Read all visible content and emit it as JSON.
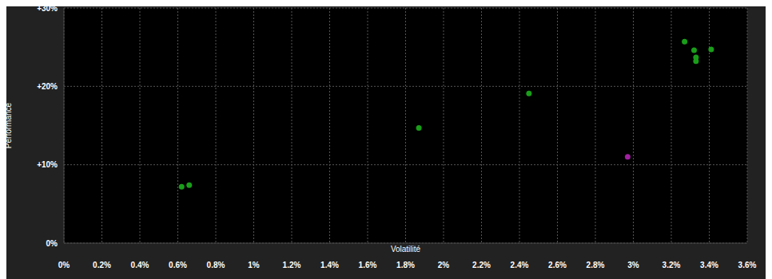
{
  "chart_data": {
    "type": "scatter",
    "xlabel": "Volatilité",
    "ylabel": "Performance",
    "x": [
      0.62,
      0.66,
      1.87,
      2.45,
      3.27,
      3.32,
      3.33,
      3.33,
      3.41,
      2.97
    ],
    "values": [
      7.2,
      7.4,
      14.7,
      19.1,
      25.7,
      24.6,
      23.7,
      23.2,
      24.7,
      11.0
    ],
    "colors": [
      "#1a9e1a",
      "#1a9e1a",
      "#1a9e1a",
      "#1a9e1a",
      "#1a9e1a",
      "#1a9e1a",
      "#1a9e1a",
      "#1a9e1a",
      "#1a9e1a",
      "#a020a0"
    ],
    "marker": "circle",
    "xlim": [
      0,
      3.6
    ],
    "xticks": [
      {
        "value": 0,
        "label": "0%"
      },
      {
        "value": 0.2,
        "label": "0.2%"
      },
      {
        "value": 0.4,
        "label": "0.4%"
      },
      {
        "value": 0.6,
        "label": "0.6%"
      },
      {
        "value": 0.8,
        "label": "0.8%"
      },
      {
        "value": 1,
        "label": "1%"
      },
      {
        "value": 1.2,
        "label": "1.2%"
      },
      {
        "value": 1.4,
        "label": "1.4%"
      },
      {
        "value": 1.6,
        "label": "1.6%"
      },
      {
        "value": 1.8,
        "label": "1.8%"
      },
      {
        "value": 2,
        "label": "2%"
      },
      {
        "value": 2.2,
        "label": "2.2%"
      },
      {
        "value": 2.4,
        "label": "2.4%"
      },
      {
        "value": 2.6,
        "label": "2.6%"
      },
      {
        "value": 2.8,
        "label": "2.8%"
      },
      {
        "value": 3,
        "label": "3%"
      },
      {
        "value": 3.2,
        "label": "3.2%"
      },
      {
        "value": 3.4,
        "label": "3.4%"
      },
      {
        "value": 3.6,
        "label": "3.6%"
      }
    ],
    "ylim": [
      0,
      30
    ],
    "yticks": [
      {
        "value": 0,
        "label": "0%"
      },
      {
        "value": 10,
        "label": "+10%"
      },
      {
        "value": 20,
        "label": "+20%"
      },
      {
        "value": 30,
        "label": "+30%"
      }
    ],
    "grid": true
  }
}
